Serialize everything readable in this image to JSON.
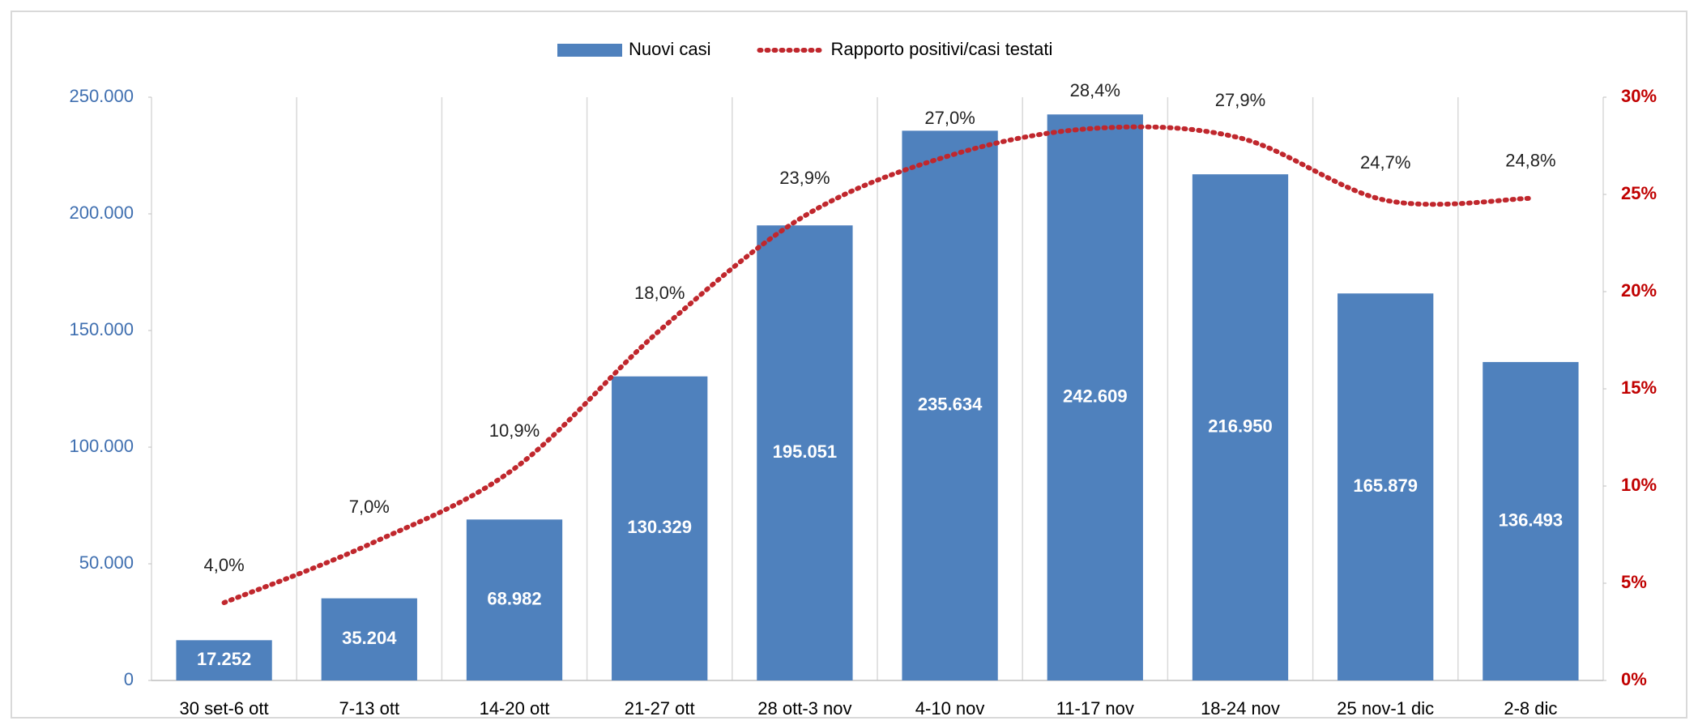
{
  "chart_data": {
    "type": "combo",
    "categories": [
      "30 set-6 ott",
      "7-13 ott",
      "14-20 ott",
      "21-27 ott",
      "28 ott-3 nov",
      "4-10 nov",
      "11-17 nov",
      "18-24 nov",
      "25 nov-1 dic",
      "2-8 dic"
    ],
    "series": [
      {
        "name": "Nuovi casi",
        "type": "bar",
        "color": "#4f81bd",
        "values": [
          17252,
          35204,
          68982,
          130329,
          195051,
          235634,
          242609,
          216950,
          165879,
          136493
        ],
        "value_labels": [
          "17.252",
          "35.204",
          "68.982",
          "130.329",
          "195.051",
          "235.634",
          "242.609",
          "216.950",
          "165.879",
          "136.493"
        ]
      },
      {
        "name": "Rapporto positivi/casi testati",
        "type": "line",
        "axis": "y2",
        "color": "#c0272d",
        "values": [
          4.0,
          7.0,
          10.9,
          18.0,
          23.9,
          27.0,
          28.4,
          27.9,
          24.7,
          24.8
        ],
        "value_labels": [
          "4,0%",
          "7,0%",
          "10,9%",
          "18,0%",
          "23,9%",
          "27,0%",
          "28,4%",
          "27,9%",
          "24,7%",
          "24,8%"
        ]
      }
    ],
    "ylim": [
      0,
      250000
    ],
    "yticks": [
      0,
      {
        "value": 50000,
        "label": "50.000"
      },
      {
        "value": 100000,
        "label": "100.000"
      },
      {
        "value": 150000,
        "label": "150.000"
      },
      {
        "value": 200000,
        "label": "200.000"
      },
      {
        "value": 250000,
        "label": "250.000"
      }
    ],
    "y2lim": [
      0,
      30
    ],
    "y2ticks": [
      {
        "value": 0,
        "label": "0%"
      },
      {
        "value": 5,
        "label": "5%"
      },
      {
        "value": 10,
        "label": "10%"
      },
      {
        "value": 15,
        "label": "15%"
      },
      {
        "value": 20,
        "label": "20%"
      },
      {
        "value": 25,
        "label": "25%"
      },
      {
        "value": 30,
        "label": "30%"
      }
    ],
    "legend": "top"
  }
}
